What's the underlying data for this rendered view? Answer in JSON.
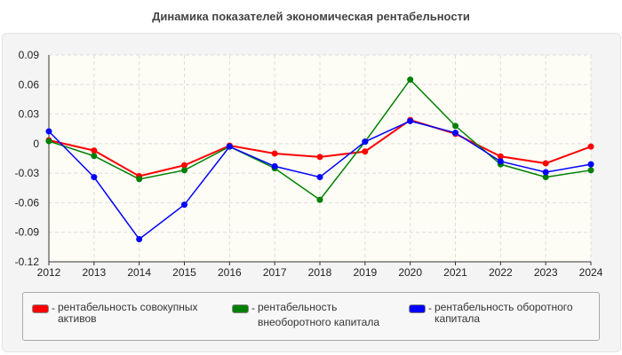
{
  "chart_data": {
    "type": "line",
    "title": "Динамика показателей экономическая рентабельности",
    "x": [
      "2012",
      "2013",
      "2014",
      "2015",
      "2016",
      "2017",
      "2018",
      "2019",
      "2020",
      "2021",
      "2022",
      "2023",
      "2024"
    ],
    "ylim": [
      -0.12,
      0.09
    ],
    "yticks": [
      "0.09",
      "0.06",
      "0.03",
      "0",
      "-0.03",
      "-0.06",
      "-0.09",
      "-0.12"
    ],
    "yticks_values": [
      0.09,
      0.06,
      0.03,
      0,
      -0.03,
      -0.06,
      -0.09,
      -0.12
    ],
    "grid": true,
    "legend_position": "bottom",
    "series": [
      {
        "name": "рентабельность совокупных активов",
        "color": "#ff0000",
        "values": [
          0.0035,
          -0.007,
          -0.033,
          -0.022,
          -0.002,
          -0.01,
          -0.0135,
          -0.008,
          0.024,
          0.01,
          -0.013,
          -0.02,
          -0.003
        ]
      },
      {
        "name": "рентабельность внеоборотного капитала",
        "color": "#008000",
        "values": [
          0.0025,
          -0.0125,
          -0.036,
          -0.027,
          -0.003,
          -0.025,
          -0.057,
          0.002,
          0.065,
          0.018,
          -0.021,
          -0.034,
          -0.027
        ]
      },
      {
        "name": "рентабельность оборотного капитала",
        "color": "#0000ff",
        "values": [
          0.0125,
          -0.034,
          -0.097,
          -0.062,
          -0.003,
          -0.023,
          -0.034,
          0.002,
          0.023,
          0.011,
          -0.018,
          -0.029,
          -0.021
        ]
      }
    ]
  },
  "legend": [
    {
      "line1": "рентабельность совокупных",
      "line2": "активов"
    },
    {
      "line1": "рентабельность",
      "line2": "внеоборотного капитала"
    },
    {
      "line1": "рентабельность оборотного",
      "line2": "капитала"
    }
  ]
}
